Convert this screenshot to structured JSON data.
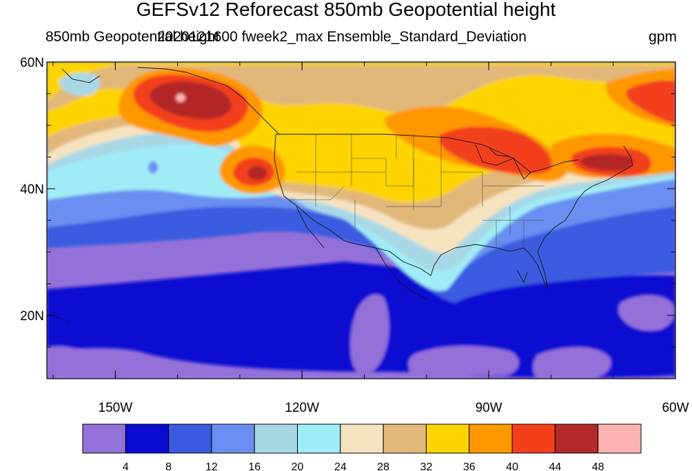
{
  "title": "GEFSv12 Reforecast 850mb Geopotential height",
  "subtitle_left": "850mb Geopotential height",
  "subtitle_center": "2020121600 fweek2_max Ensemble_Standard_Deviation",
  "units": "gpm",
  "map": {
    "projection": "cylindrical equidistant",
    "lon_range": [
      -161,
      -60
    ],
    "lat_range": [
      10,
      60
    ],
    "x_ticks": [
      {
        "value": -150,
        "label": "150W"
      },
      {
        "value": -120,
        "label": "120W"
      },
      {
        "value": -90,
        "label": "90W"
      },
      {
        "value": -60,
        "label": "60W"
      }
    ],
    "y_ticks": [
      {
        "value": 60,
        "label": "60N"
      },
      {
        "value": 40,
        "label": "40N"
      },
      {
        "value": 20,
        "label": "20N"
      }
    ]
  },
  "colorbar": {
    "colors": [
      "#9471d9",
      "#0a0ad1",
      "#3a5be0",
      "#6a8ff0",
      "#a8d8e6",
      "#a0ecf6",
      "#f5e3c0",
      "#e1b87a",
      "#ffd400",
      "#ff9800",
      "#f3401a",
      "#b32828",
      "#ffb3b3"
    ],
    "labels": [
      "4",
      "8",
      "12",
      "16",
      "20",
      "24",
      "28",
      "32",
      "36",
      "40",
      "44",
      "48"
    ]
  }
}
